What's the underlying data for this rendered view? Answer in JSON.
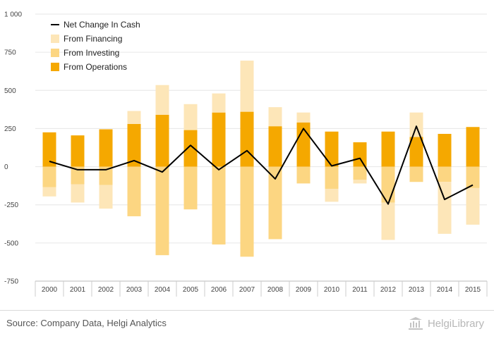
{
  "chart_data": {
    "type": "bar",
    "categories": [
      "2000",
      "2001",
      "2002",
      "2003",
      "2004",
      "2005",
      "2006",
      "2007",
      "2008",
      "2009",
      "2010",
      "2011",
      "2012",
      "2013",
      "2014",
      "2015"
    ],
    "series": [
      {
        "name": "From Operations",
        "kind": "bar",
        "color": "#f5a800",
        "values": [
          225,
          205,
          245,
          280,
          340,
          240,
          355,
          360,
          265,
          290,
          230,
          160,
          230,
          195,
          215,
          260
        ]
      },
      {
        "name": "From Investing",
        "kind": "bar",
        "color": "#fcd682",
        "values": [
          -135,
          -115,
          -120,
          -325,
          -580,
          -280,
          -510,
          -590,
          -475,
          -110,
          -145,
          -85,
          -235,
          -100,
          -100,
          -140
        ]
      },
      {
        "name": "From Financing",
        "kind": "bar",
        "color": "#fde6b8",
        "values": [
          -60,
          -120,
          -155,
          85,
          195,
          170,
          125,
          335,
          125,
          65,
          -85,
          -25,
          -245,
          160,
          -340,
          -240
        ]
      },
      {
        "name": "Net Change In Cash",
        "kind": "line",
        "color": "#000000",
        "values": [
          35,
          -20,
          -20,
          40,
          -35,
          140,
          -20,
          105,
          -80,
          250,
          5,
          55,
          -245,
          265,
          -215,
          -120
        ]
      }
    ],
    "legend_order": [
      "Net Change In Cash",
      "From Financing",
      "From Investing",
      "From Operations"
    ],
    "legend_position": "top-left",
    "yticks": [
      -750,
      -500,
      -250,
      0,
      250,
      500,
      750,
      1000
    ],
    "ytick_labels": [
      "-750",
      "-500",
      "-250",
      "0",
      "250",
      "500",
      "750",
      "1 000"
    ],
    "ylim": [
      -750,
      1000
    ],
    "grid": true
  },
  "footer": {
    "source": "Source: Company Data, Helgi Analytics",
    "brand": "HelgiLibrary"
  }
}
